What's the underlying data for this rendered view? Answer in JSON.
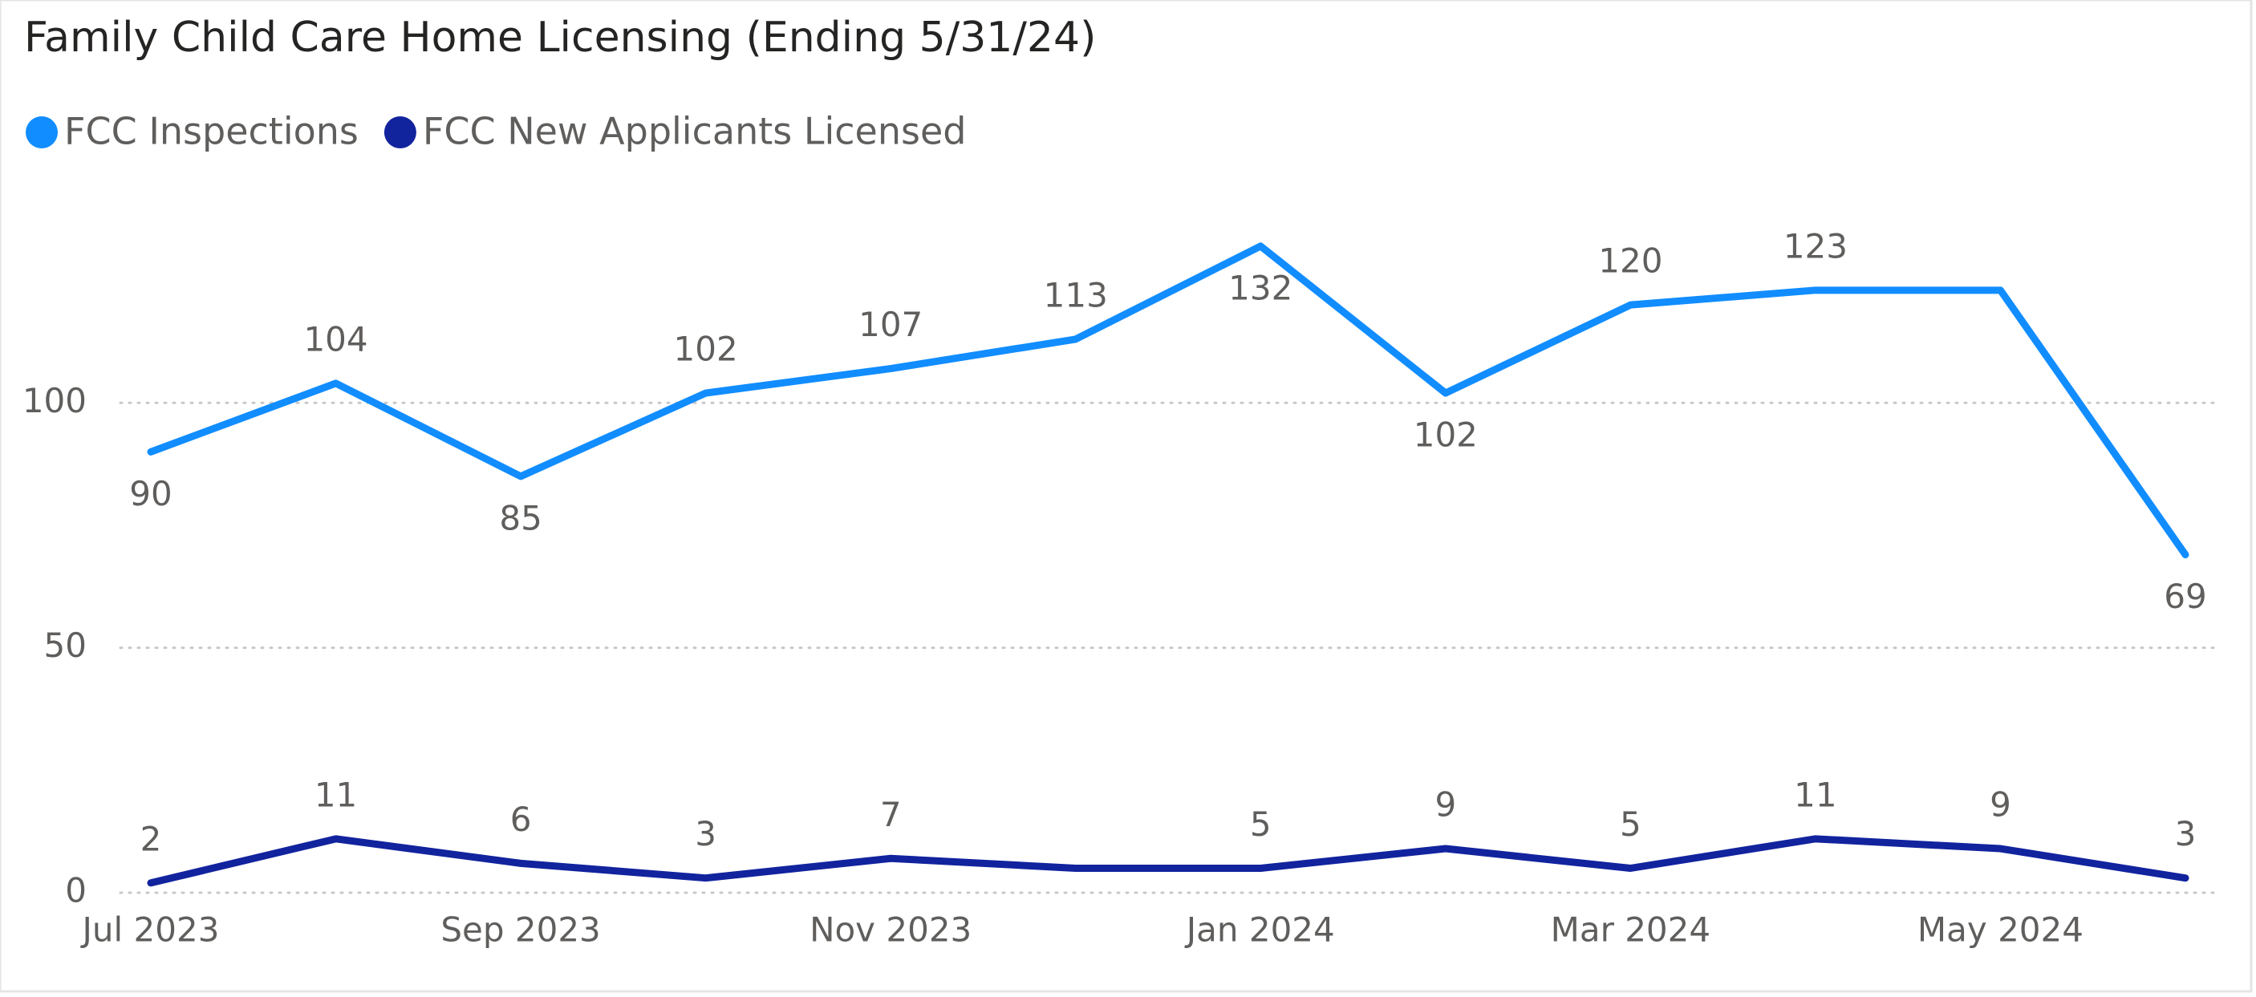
{
  "chart_data": {
    "type": "line",
    "title": "Family Child Care Home Licensing (Ending 5/31/24)",
    "categories": [
      "Jul 2023",
      null,
      "Sep 2023",
      null,
      "Nov 2023",
      null,
      "Jan 2024",
      null,
      "Mar 2024",
      null,
      "May 2024",
      null
    ],
    "series": [
      {
        "name": "FCC Inspections",
        "color": "#118DFF",
        "values": [
          90,
          104,
          85,
          102,
          107,
          113,
          132,
          102,
          120,
          123,
          123,
          69
        ],
        "value_labels": [
          "90",
          "104",
          "85",
          "102",
          "107",
          "113",
          "132",
          "102",
          "120",
          "123",
          null,
          "69"
        ]
      },
      {
        "name": "FCC New Applicants Licensed",
        "color": "#12239E",
        "values": [
          2,
          11,
          6,
          3,
          7,
          5,
          5,
          9,
          5,
          11,
          9,
          3
        ],
        "value_labels": [
          "2",
          "11",
          "6",
          "3",
          "7",
          null,
          "5",
          "9",
          "5",
          "11",
          "9",
          "3"
        ]
      }
    ],
    "ylim": [
      0,
      140
    ],
    "yticks": [
      0,
      50,
      100
    ],
    "grid": true,
    "legend": "top-left"
  }
}
